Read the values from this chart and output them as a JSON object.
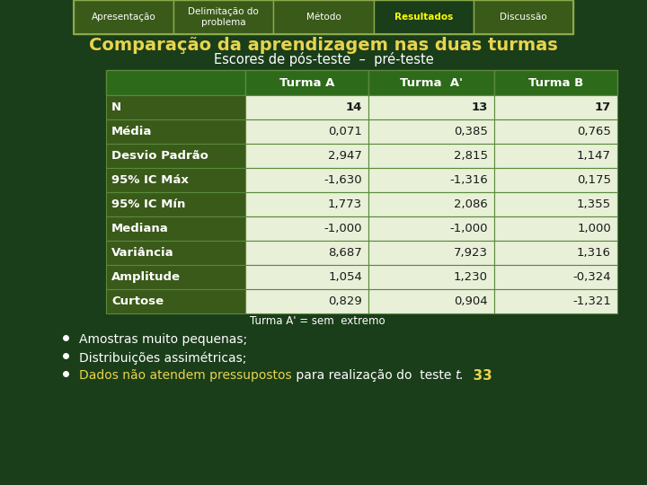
{
  "bg_color": "#1a3d1a",
  "nav_labels": [
    "Apresentação",
    "Delimitação do\nproblema",
    "Método",
    "Resultados",
    "Discussão"
  ],
  "nav_active": 3,
  "nav_bg": "#3a5a1a",
  "nav_border": "#8aaa4a",
  "nav_text_color": "#ffffff",
  "nav_active_text_color": "#ffff00",
  "title": "Comparação da aprendizagem nas duas turmas",
  "subtitle": "Escores de pós-teste  –  pré-teste",
  "title_color": "#e8d44d",
  "subtitle_color": "#ffffff",
  "table_header": [
    "",
    "Turma A",
    "Turma  A'",
    "Turma B"
  ],
  "table_rows": [
    [
      "N",
      "14",
      "13",
      "17"
    ],
    [
      "Média",
      "0,071",
      "0,385",
      "0,765"
    ],
    [
      "Desvio Padrão",
      "2,947",
      "2,815",
      "1,147"
    ],
    [
      "95% IC Máx",
      "-1,630",
      "-1,316",
      "0,175"
    ],
    [
      "95% IC Mín",
      "1,773",
      "2,086",
      "1,355"
    ],
    [
      "Mediana",
      "-1,000",
      "-1,000",
      "1,000"
    ],
    [
      "Variância",
      "8,687",
      "7,923",
      "1,316"
    ],
    [
      "Amplitude",
      "1,054",
      "1,230",
      "-0,324"
    ],
    [
      "Curtose",
      "0,829",
      "0,904",
      "-1,321"
    ]
  ],
  "header_bg": "#2d6a1a",
  "row_bg_dark": "#3a5a1a",
  "row_bg_light": "#e8f0d8",
  "footnote": "Turma A' = sem  extremo",
  "footnote_color": "#ffffff",
  "yellow_part": "Dados não atendem pressupostos",
  "white_part": " para realização do  teste ",
  "italic_part": "t.",
  "number_33": "  33",
  "bullet1": "Amostras muito pequenas;",
  "bullet2": "Distribuições assimétricas;"
}
